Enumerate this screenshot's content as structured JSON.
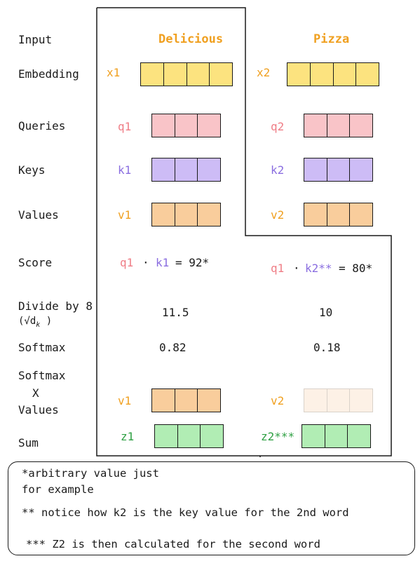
{
  "rows": {
    "input": "Input",
    "embedding": "Embedding",
    "queries": "Queries",
    "keys": "Keys",
    "values": "Values",
    "score": "Score",
    "divide": "Divide by 8",
    "divide_sub": "(√d",
    "divide_sub_k": "k",
    "divide_sub_close": ")",
    "softmax": "Softmax",
    "softmax_x": "Softmax",
    "x_mark": "X",
    "x_values": "Values",
    "sum": "Sum"
  },
  "word1": {
    "word": "Delicious",
    "embedding_label": "x1",
    "query_label": "q1",
    "key_label": "k1",
    "value_label": "v1",
    "score_q": "q1",
    "score_dot": "·",
    "score_k": "k1",
    "score_eq": "= 92*",
    "divided": "11.5",
    "softmax": "0.82",
    "weighted_label": "v1",
    "sum_label": "z1"
  },
  "word2": {
    "word": "Pizza",
    "embedding_label": "x2",
    "query_label": "q2",
    "key_label": "k2",
    "value_label": "v2",
    "score_q": "q1",
    "score_dot": "·",
    "score_k": "k2**",
    "score_eq": "= 80*",
    "divided": "10",
    "softmax": "0.18",
    "weighted_label": "v2",
    "sum_label": "z2***"
  },
  "notes": {
    "line1": "*arbitrary value just",
    "line2": "for example",
    "line3": "** notice how k2 is the key value for the 2nd word",
    "line4": "*** Z2 is then calculated for the second word"
  },
  "colors": {
    "embedding": "#fce37f",
    "query": "#f9c4c8",
    "key": "#cdbcf6",
    "value": "#f9cd9c",
    "value_faded": "#fdf1e6",
    "sum": "#b1edb4",
    "word": "#f0a020",
    "query_text": "#ef7d86",
    "key_text": "#8a6ee0",
    "value_text": "#f0a020",
    "sum_text": "#2ea043"
  }
}
